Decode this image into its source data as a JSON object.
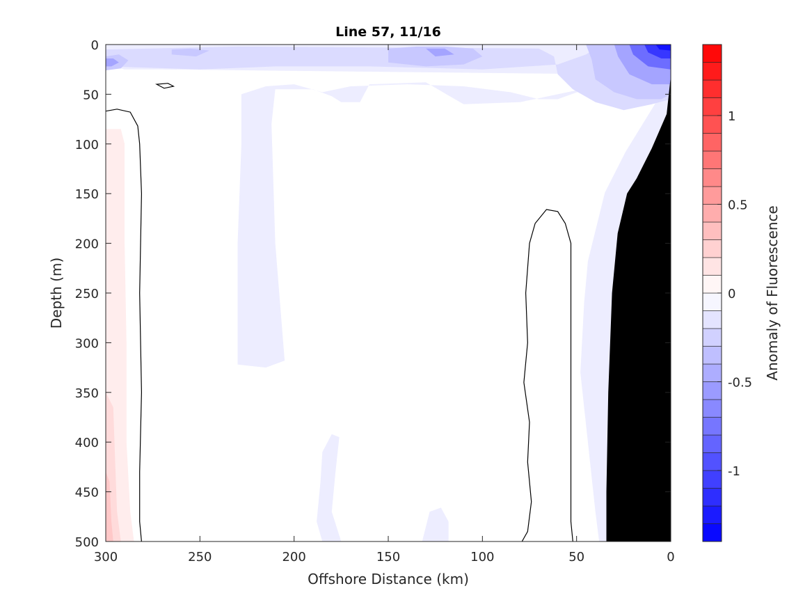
{
  "chart_data": {
    "type": "heatmap",
    "title": "Line 57, 11/16",
    "xlabel": "Offshore Distance (km)",
    "ylabel": "Depth (m)",
    "colorbar_label": "Anomaly of Fluorescence",
    "xlim": [
      300,
      0
    ],
    "ylim": [
      500,
      0
    ],
    "x_reversed": true,
    "y_reversed": true,
    "x_ticks": [
      300,
      250,
      200,
      150,
      100,
      50,
      0
    ],
    "y_ticks": [
      0,
      50,
      100,
      150,
      200,
      250,
      300,
      350,
      400,
      450,
      500
    ],
    "colorbar_range": [
      -1.4,
      1.4
    ],
    "colorbar_ticks": [
      1,
      0.5,
      0,
      -0.5,
      -1
    ],
    "colorbar_step": 0.1,
    "colormap": {
      "negative": "#0000ff",
      "zero": "#ffffff",
      "positive": "#ff0000"
    },
    "bathymetry_color": "#000000",
    "zero_contour": true,
    "grid": false,
    "features": [
      {
        "kind": "anomaly_patch",
        "value": -0.1,
        "points": [
          [
            300,
            0
          ],
          [
            0,
            0
          ],
          [
            0,
            34
          ],
          [
            24,
            108
          ],
          [
            35,
            149
          ],
          [
            44,
            218
          ],
          [
            46,
            260
          ],
          [
            48,
            330
          ],
          [
            40,
            470
          ],
          [
            38,
            500
          ],
          [
            34,
            500
          ],
          [
            29,
            440
          ],
          [
            26,
            360
          ],
          [
            22,
            300
          ],
          [
            18,
            200
          ],
          [
            12,
            140
          ],
          [
            6,
            90
          ],
          [
            0,
            60
          ],
          [
            0,
            0
          ],
          [
            38,
            40
          ],
          [
            60,
            55
          ],
          [
            70,
            55
          ],
          [
            85,
            48
          ],
          [
            110,
            42
          ],
          [
            140,
            40
          ],
          [
            170,
            42
          ],
          [
            185,
            48
          ],
          [
            200,
            40
          ],
          [
            215,
            42
          ],
          [
            228,
            50
          ],
          [
            228,
            100
          ],
          [
            230,
            200
          ],
          [
            230,
            322
          ],
          [
            215,
            325
          ],
          [
            205,
            318
          ],
          [
            210,
            200
          ],
          [
            212,
            80
          ],
          [
            210,
            45
          ],
          [
            190,
            45
          ],
          [
            180,
            52
          ],
          [
            175,
            58
          ],
          [
            165,
            58
          ],
          [
            160,
            40
          ],
          [
            130,
            38
          ],
          [
            110,
            60
          ],
          [
            80,
            58
          ],
          [
            60,
            50
          ],
          [
            40,
            42
          ],
          [
            30,
            30
          ],
          [
            270,
            25
          ],
          [
            290,
            25
          ],
          [
            300,
            20
          ]
        ]
      },
      {
        "kind": "anomaly_patch",
        "value": -0.1,
        "points": [
          [
            180,
            392
          ],
          [
            185,
            410
          ],
          [
            186,
            440
          ],
          [
            188,
            480
          ],
          [
            185,
            500
          ],
          [
            175,
            500
          ],
          [
            180,
            470
          ],
          [
            178,
            430
          ],
          [
            176,
            395
          ]
        ]
      },
      {
        "kind": "anomaly_patch",
        "value": -0.1,
        "points": [
          [
            132,
            500
          ],
          [
            128,
            470
          ],
          [
            122,
            466
          ],
          [
            118,
            480
          ],
          [
            118,
            500
          ]
        ]
      },
      {
        "kind": "anomaly_patch",
        "value": -0.2,
        "points": [
          [
            300,
            5
          ],
          [
            300,
            22
          ],
          [
            250,
            25
          ],
          [
            210,
            22
          ],
          [
            160,
            22
          ],
          [
            100,
            25
          ],
          [
            60,
            20
          ],
          [
            45,
            10
          ],
          [
            40,
            4
          ],
          [
            30,
            2
          ],
          [
            10,
            2
          ],
          [
            0,
            2
          ],
          [
            0,
            55
          ],
          [
            10,
            60
          ],
          [
            25,
            66
          ],
          [
            40,
            58
          ],
          [
            52,
            45
          ],
          [
            60,
            30
          ],
          [
            62,
            12
          ],
          [
            70,
            4
          ],
          [
            230,
            2
          ]
        ]
      },
      {
        "kind": "anomaly_patch",
        "value": -0.3,
        "points": [
          [
            0,
            0
          ],
          [
            45,
            0
          ],
          [
            42,
            15
          ],
          [
            40,
            35
          ],
          [
            30,
            48
          ],
          [
            18,
            55
          ],
          [
            5,
            55
          ],
          [
            0,
            50
          ]
        ]
      },
      {
        "kind": "anomaly_patch",
        "value": -0.3,
        "points": [
          [
            150,
            4
          ],
          [
            135,
            2
          ],
          [
            120,
            2
          ],
          [
            105,
            4
          ],
          [
            100,
            12
          ],
          [
            110,
            20
          ],
          [
            130,
            22
          ],
          [
            150,
            18
          ]
        ]
      },
      {
        "kind": "anomaly_patch",
        "value": -0.3,
        "points": [
          [
            300,
            12
          ],
          [
            293,
            10
          ],
          [
            288,
            16
          ],
          [
            292,
            24
          ],
          [
            300,
            26
          ]
        ]
      },
      {
        "kind": "anomaly_patch",
        "value": -0.3,
        "points": [
          [
            265,
            5
          ],
          [
            255,
            4
          ],
          [
            245,
            6
          ],
          [
            252,
            12
          ],
          [
            265,
            10
          ]
        ]
      },
      {
        "kind": "anomaly_patch",
        "value": -0.5,
        "points": [
          [
            0,
            0
          ],
          [
            30,
            0
          ],
          [
            28,
            12
          ],
          [
            22,
            30
          ],
          [
            10,
            40
          ],
          [
            0,
            40
          ]
        ]
      },
      {
        "kind": "anomaly_patch",
        "value": -0.5,
        "points": [
          [
            130,
            4
          ],
          [
            120,
            4
          ],
          [
            115,
            10
          ],
          [
            125,
            12
          ]
        ]
      },
      {
        "kind": "anomaly_patch",
        "value": -0.5,
        "points": [
          [
            300,
            14
          ],
          [
            296,
            14
          ],
          [
            293,
            18
          ],
          [
            297,
            22
          ],
          [
            300,
            22
          ]
        ]
      },
      {
        "kind": "anomaly_patch",
        "value": -0.8,
        "points": [
          [
            0,
            0
          ],
          [
            22,
            0
          ],
          [
            20,
            10
          ],
          [
            12,
            22
          ],
          [
            0,
            25
          ]
        ]
      },
      {
        "kind": "anomaly_patch",
        "value": -1.1,
        "points": [
          [
            0,
            0
          ],
          [
            14,
            0
          ],
          [
            12,
            8
          ],
          [
            5,
            14
          ],
          [
            0,
            14
          ]
        ]
      },
      {
        "kind": "anomaly_patch",
        "value": -1.3,
        "points": [
          [
            0,
            0
          ],
          [
            8,
            0
          ],
          [
            6,
            5
          ],
          [
            0,
            6
          ]
        ]
      },
      {
        "kind": "anomaly_patch",
        "value": 0.1,
        "points": [
          [
            300,
            85
          ],
          [
            292,
            85
          ],
          [
            290,
            100
          ],
          [
            290,
            200
          ],
          [
            289,
            300
          ],
          [
            289,
            400
          ],
          [
            287,
            470
          ],
          [
            285,
            500
          ],
          [
            300,
            500
          ]
        ]
      },
      {
        "kind": "anomaly_patch",
        "value": 0.2,
        "points": [
          [
            300,
            350
          ],
          [
            296,
            365
          ],
          [
            295,
            420
          ],
          [
            294,
            470
          ],
          [
            292,
            500
          ],
          [
            300,
            500
          ]
        ]
      },
      {
        "kind": "anomaly_patch",
        "value": 0.3,
        "points": [
          [
            300,
            430
          ],
          [
            298,
            440
          ],
          [
            297,
            480
          ],
          [
            296,
            500
          ],
          [
            300,
            500
          ]
        ]
      },
      {
        "kind": "zero_contour",
        "points": [
          [
            300,
            67
          ],
          [
            294,
            65
          ],
          [
            287,
            68
          ],
          [
            283,
            82
          ],
          [
            282,
            100
          ],
          [
            281,
            150
          ],
          [
            282,
            250
          ],
          [
            281,
            350
          ],
          [
            282,
            430
          ],
          [
            282,
            480
          ],
          [
            281,
            500
          ]
        ]
      },
      {
        "kind": "zero_contour",
        "points": [
          [
            79,
            500
          ],
          [
            76,
            490
          ],
          [
            74,
            460
          ],
          [
            76,
            420
          ],
          [
            75,
            380
          ],
          [
            78,
            340
          ],
          [
            76,
            300
          ],
          [
            77,
            250
          ],
          [
            75,
            200
          ],
          [
            72,
            180
          ],
          [
            66,
            166
          ],
          [
            60,
            168
          ],
          [
            56,
            180
          ],
          [
            53,
            200
          ],
          [
            53,
            300
          ],
          [
            53,
            400
          ],
          [
            53,
            480
          ],
          [
            52,
            500
          ]
        ]
      },
      {
        "kind": "zero_contour",
        "closed": true,
        "points": [
          [
            273,
            40
          ],
          [
            267,
            39
          ],
          [
            264,
            42
          ],
          [
            269,
            44
          ]
        ]
      },
      {
        "kind": "bathymetry",
        "points": [
          [
            0,
            35
          ],
          [
            2,
            70
          ],
          [
            10,
            105
          ],
          [
            18,
            135
          ],
          [
            23,
            150
          ],
          [
            28,
            190
          ],
          [
            31,
            250
          ],
          [
            33,
            350
          ],
          [
            34,
            450
          ],
          [
            34,
            500
          ],
          [
            0,
            500
          ]
        ]
      }
    ]
  }
}
